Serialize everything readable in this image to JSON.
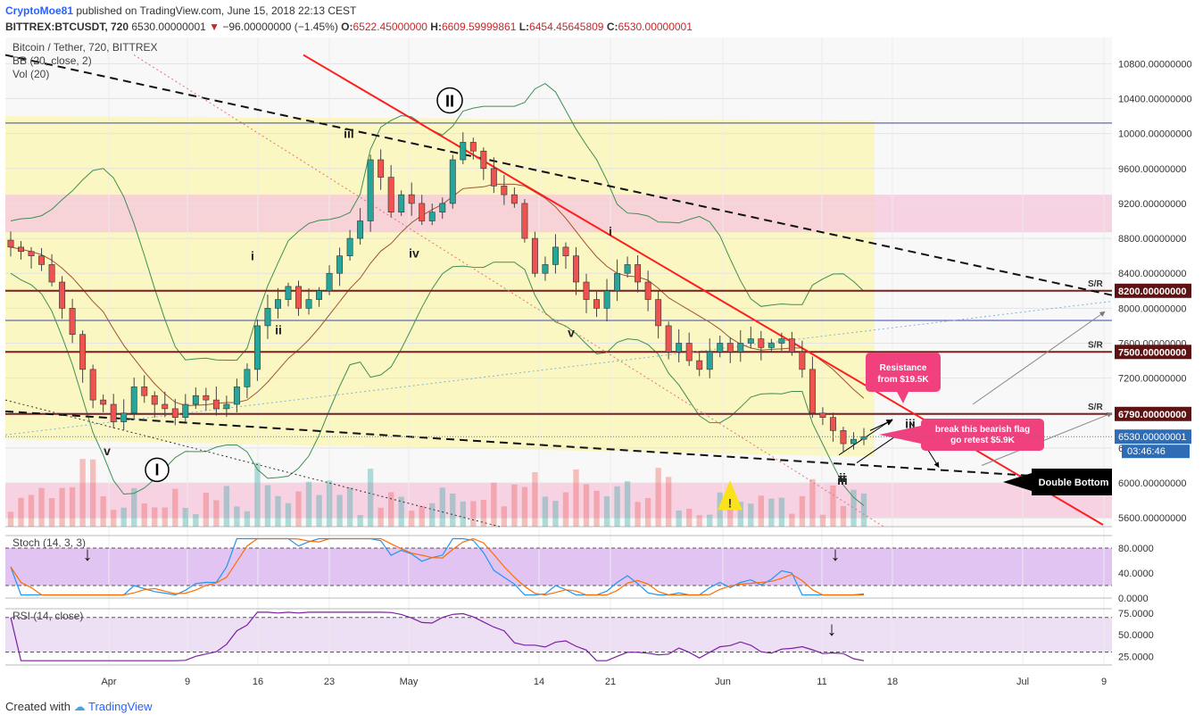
{
  "header": {
    "author": "CryptoMoe81",
    "published_text": "published on TradingView.com, June 15, 2018 22:13 CEST",
    "symbol_line": "BITTREX:BTCUSDT, 720",
    "price": "6530.00000001",
    "change": "−96.00000000 (−1.45%)",
    "open_label": "O:",
    "open": "6522.45000000",
    "high_label": "H:",
    "high": "6609.59999861",
    "low_label": "L:",
    "low": "6454.45645809",
    "close_label": "C:",
    "close": "6530.00000001"
  },
  "legend": {
    "title": "Bitcoin / Tether, 720, BITTREX",
    "bb": "BB (20, close, 2)",
    "vol": "Vol (20)",
    "stoch": "Stoch (14, 3, 3)",
    "rsi": "RSI (14, close)"
  },
  "footer": {
    "created_with": "Created with",
    "brand": "TradingView"
  },
  "colors": {
    "up": "#26a69a",
    "down": "#ef5350",
    "resistance": "#ff1e1e",
    "sr_line": "#7b1f1f",
    "bb": "#3e8e55",
    "ma": "#a0522d",
    "bb_fill": "#fbf7b8",
    "pink_zone": "#f6c6dc",
    "stoch_bg": "#e1c4f2",
    "rsi_bg": "#ede0f4"
  },
  "annotations": {
    "resistance_box": [
      "Resistance",
      "from $19.5K"
    ],
    "flag_box": [
      "break this bearish flag",
      "go retest $5.9K"
    ],
    "double_bottom": "Double Bottom",
    "wave_I": "I",
    "wave_II": "II",
    "waves": [
      "v",
      "i",
      "ii",
      "iii",
      "iv",
      "v",
      "i",
      "ii",
      "iii",
      "iv",
      "iii"
    ],
    "sr_tag": "S/R",
    "warning": "!"
  },
  "chart_data": {
    "type": "candlestick",
    "title": "Bitcoin / Tether, 720, BITTREX",
    "x_ticks": [
      "Apr",
      "9",
      "16",
      "23",
      "May",
      "14",
      "21",
      "Jun",
      "11",
      "18",
      "Jul",
      "9"
    ],
    "y_ticks": [
      5600,
      6000,
      6400,
      6800,
      7200,
      7600,
      8000,
      8400,
      8800,
      9200,
      9600,
      10000,
      10400,
      10800
    ],
    "y_tick_labels": [
      "5600.00000000",
      "6000.00000000",
      "6400.00000000",
      "6800.00000000",
      "7200.00000000",
      "7600.00000000",
      "8000.00000000",
      "8400.00000000",
      "8800.00000000",
      "9200.00000000",
      "9600.00000000",
      "10000.00000000",
      "10400.00000000",
      "10800.00000000"
    ],
    "ylim": [
      5500,
      11100
    ],
    "sr_levels": [
      {
        "value": 8200,
        "label": "8200.00000000"
      },
      {
        "value": 7500,
        "label": "7500.00000000"
      },
      {
        "value": 6790,
        "label": "6790.00000000"
      }
    ],
    "current_price": {
      "value": 6530,
      "label": "6530.00000001",
      "countdown": "03:46:46"
    },
    "price_path": [
      8700,
      8650,
      8600,
      8500,
      8300,
      8000,
      7700,
      7300,
      6950,
      6900,
      6700,
      6800,
      7100,
      7000,
      6900,
      6850,
      6750,
      6900,
      7000,
      6950,
      6850,
      6900,
      7100,
      7300,
      7800,
      8000,
      8100,
      8250,
      8000,
      8100,
      8200,
      8400,
      8600,
      8800,
      9000,
      9700,
      9500,
      9100,
      9300,
      9200,
      9000,
      9100,
      9200,
      9700,
      9900,
      9800,
      9600,
      9400,
      9300,
      9200,
      8800,
      8400,
      8500,
      8700,
      8600,
      8300,
      8100,
      8000,
      8200,
      8400,
      8500,
      8300,
      8100,
      7800,
      7500,
      7600,
      7400,
      7300,
      7500,
      7600,
      7500,
      7600,
      7650,
      7550,
      7600,
      7650,
      7500,
      7300,
      6800,
      6750,
      6600,
      6450,
      6500,
      6530
    ],
    "stoch": {
      "ylim": [
        0,
        100
      ],
      "y_ticks": [
        0,
        40,
        80
      ],
      "y_tick_labels": [
        "0.0000",
        "40.0000",
        "80.0000"
      ],
      "bands": [
        20,
        80
      ]
    },
    "rsi": {
      "ylim": [
        15,
        80
      ],
      "y_ticks": [
        25,
        50,
        75
      ],
      "y_tick_labels": [
        "25.0000",
        "50.0000",
        "75.0000"
      ],
      "bands": [
        30,
        70
      ]
    }
  }
}
